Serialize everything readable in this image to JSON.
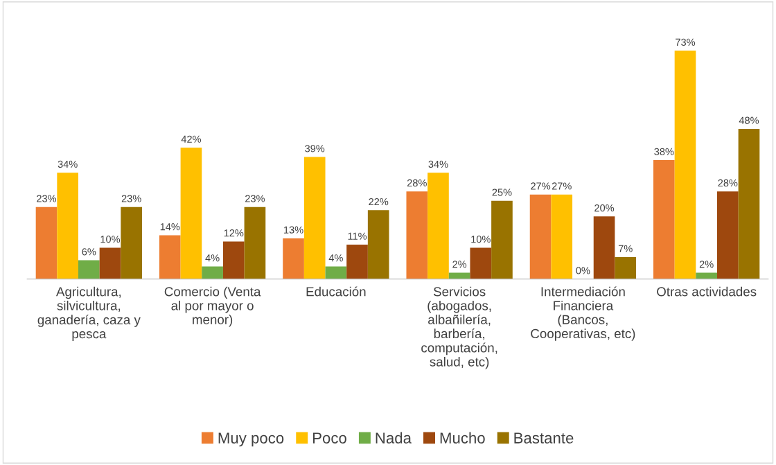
{
  "chart_data": {
    "type": "bar",
    "categories": [
      "Agricultura,\nsilvicultura,\nganadería, caza y\npesca",
      "Comercio (Venta\nal por mayor o\nmenor)",
      "Educación",
      "Servicios\n(abogados,\nalbañilería,\nbarbería,\ncomputación,\nsalud, etc)",
      "Intermediación\nFinanciera\n(Bancos,\nCooperativas, etc)",
      "Otras actividades"
    ],
    "series": [
      {
        "name": "Muy poco",
        "color": "#ed7d31",
        "values": [
          23,
          14,
          13,
          28,
          27,
          38
        ],
        "value_labels": [
          "23%",
          "14%",
          "13%",
          "28%",
          "27%",
          "38%"
        ]
      },
      {
        "name": "Poco",
        "color": "#ffc000",
        "values": [
          34,
          42,
          39,
          34,
          27,
          73
        ],
        "value_labels": [
          "34%",
          "42%",
          "39%",
          "34%",
          "27%",
          "73%"
        ]
      },
      {
        "name": "Nada",
        "color": "#70ad47",
        "values": [
          6,
          4,
          4,
          2,
          0,
          2
        ],
        "value_labels": [
          "6%",
          "4%",
          "4%",
          "2%",
          "0%",
          "2%"
        ]
      },
      {
        "name": "Mucho",
        "color": "#9e480e",
        "values": [
          10,
          12,
          11,
          10,
          20,
          28
        ],
        "value_labels": [
          "10%",
          "12%",
          "11%",
          "10%",
          "20%",
          "28%"
        ]
      },
      {
        "name": "Bastante",
        "color": "#997300",
        "values": [
          23,
          23,
          22,
          25,
          7,
          48
        ],
        "value_labels": [
          "23%",
          "23%",
          "22%",
          "25%",
          "7%",
          "48%"
        ]
      }
    ],
    "legend": "bottom",
    "tick_labels": "x"
  }
}
